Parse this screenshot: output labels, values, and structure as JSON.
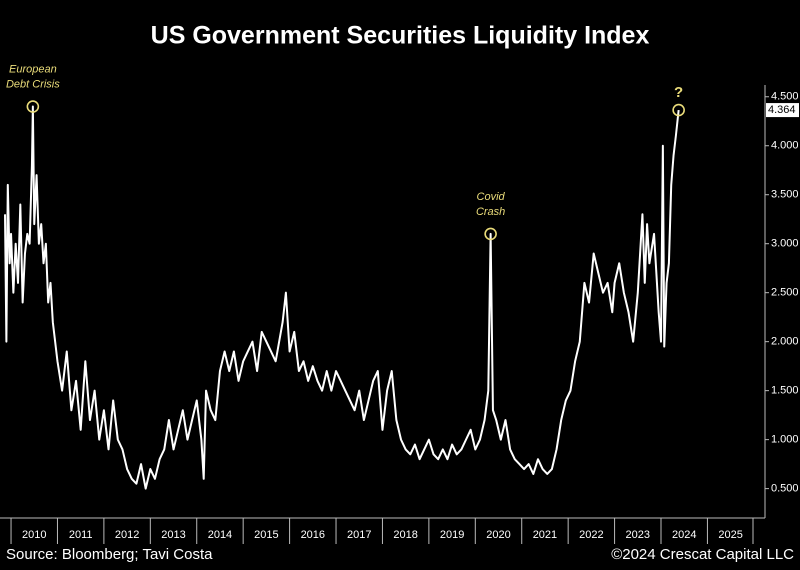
{
  "chart_data": {
    "type": "line",
    "title": "US Government Securities Liquidity Index",
    "source": "Source: Bloomberg; Tavi Costa",
    "copyright": "©2024 Crescat Capital LLC",
    "x": [
      2009.87,
      2009.9,
      2009.93,
      2009.97,
      2010.0,
      2010.05,
      2010.1,
      2010.15,
      2010.2,
      2010.25,
      2010.3,
      2010.35,
      2010.4,
      2010.45,
      2010.47,
      2010.5,
      2010.55,
      2010.6,
      2010.65,
      2010.7,
      2010.75,
      2010.8,
      2010.85,
      2010.9,
      2010.95,
      2011.0,
      2011.1,
      2011.2,
      2011.3,
      2011.4,
      2011.5,
      2011.6,
      2011.7,
      2011.8,
      2011.9,
      2012.0,
      2012.1,
      2012.2,
      2012.3,
      2012.4,
      2012.5,
      2012.6,
      2012.7,
      2012.8,
      2012.9,
      2013.0,
      2013.1,
      2013.2,
      2013.3,
      2013.4,
      2013.5,
      2013.6,
      2013.7,
      2013.8,
      2013.9,
      2014.0,
      2014.1,
      2014.15,
      2014.2,
      2014.3,
      2014.4,
      2014.5,
      2014.6,
      2014.7,
      2014.8,
      2014.9,
      2015.0,
      2015.1,
      2015.2,
      2015.3,
      2015.4,
      2015.5,
      2015.7,
      2015.85,
      2015.92,
      2016.0,
      2016.1,
      2016.2,
      2016.3,
      2016.4,
      2016.5,
      2016.6,
      2016.7,
      2016.8,
      2016.9,
      2017.0,
      2017.1,
      2017.2,
      2017.3,
      2017.4,
      2017.5,
      2017.6,
      2017.7,
      2017.8,
      2017.9,
      2018.0,
      2018.1,
      2018.2,
      2018.3,
      2018.4,
      2018.5,
      2018.6,
      2018.7,
      2018.8,
      2018.9,
      2019.0,
      2019.1,
      2019.2,
      2019.3,
      2019.4,
      2019.5,
      2019.6,
      2019.7,
      2019.8,
      2019.9,
      2020.0,
      2020.1,
      2020.2,
      2020.28,
      2020.33,
      2020.38,
      2020.45,
      2020.55,
      2020.65,
      2020.75,
      2020.85,
      2020.95,
      2021.05,
      2021.15,
      2021.25,
      2021.35,
      2021.45,
      2021.55,
      2021.65,
      2021.75,
      2021.85,
      2021.95,
      2022.05,
      2022.15,
      2022.25,
      2022.35,
      2022.45,
      2022.55,
      2022.65,
      2022.75,
      2022.85,
      2022.95,
      2023.0,
      2023.1,
      2023.2,
      2023.3,
      2023.4,
      2023.5,
      2023.6,
      2023.65,
      2023.7,
      2023.75,
      2023.85,
      2023.95,
      2024.0,
      2024.04,
      2024.07,
      2024.12,
      2024.17,
      2024.22,
      2024.27,
      2024.32,
      2024.38
    ],
    "series": [
      {
        "name": "US Government Securities Liquidity Index",
        "color": "#ffffff",
        "values": [
          3.3,
          2.0,
          3.6,
          2.8,
          3.1,
          2.5,
          3.0,
          2.6,
          3.4,
          2.4,
          2.9,
          3.1,
          3.0,
          3.8,
          4.4,
          3.2,
          3.7,
          3.0,
          3.2,
          2.8,
          3.0,
          2.4,
          2.6,
          2.2,
          2.0,
          1.8,
          1.5,
          1.9,
          1.3,
          1.6,
          1.1,
          1.8,
          1.2,
          1.5,
          1.0,
          1.3,
          0.9,
          1.4,
          1.0,
          0.9,
          0.7,
          0.6,
          0.55,
          0.75,
          0.5,
          0.7,
          0.6,
          0.8,
          0.9,
          1.2,
          0.9,
          1.1,
          1.3,
          1.0,
          1.2,
          1.4,
          1.0,
          0.6,
          1.5,
          1.3,
          1.2,
          1.7,
          1.9,
          1.7,
          1.9,
          1.6,
          1.8,
          1.9,
          2.0,
          1.7,
          2.1,
          2.0,
          1.8,
          2.2,
          2.5,
          1.9,
          2.1,
          1.7,
          1.8,
          1.6,
          1.75,
          1.6,
          1.5,
          1.7,
          1.5,
          1.7,
          1.6,
          1.5,
          1.4,
          1.3,
          1.5,
          1.2,
          1.4,
          1.6,
          1.7,
          1.1,
          1.5,
          1.7,
          1.2,
          1.0,
          0.9,
          0.85,
          0.95,
          0.8,
          0.9,
          1.0,
          0.85,
          0.8,
          0.9,
          0.8,
          0.95,
          0.85,
          0.9,
          1.0,
          1.1,
          0.9,
          1.0,
          1.2,
          1.5,
          3.1,
          1.3,
          1.2,
          1.0,
          1.2,
          0.9,
          0.8,
          0.75,
          0.7,
          0.75,
          0.65,
          0.8,
          0.7,
          0.65,
          0.7,
          0.9,
          1.2,
          1.4,
          1.5,
          1.8,
          2.0,
          2.6,
          2.4,
          2.9,
          2.7,
          2.5,
          2.6,
          2.3,
          2.6,
          2.8,
          2.5,
          2.3,
          2.0,
          2.5,
          3.3,
          2.6,
          3.2,
          2.8,
          3.1,
          2.3,
          2.0,
          4.0,
          1.95,
          2.6,
          2.8,
          3.6,
          3.9,
          4.1,
          4.364
        ]
      }
    ],
    "xlim": [
      2009.87,
      2026.24
    ],
    "xticks": [
      2010,
      2011,
      2012,
      2013,
      2014,
      2015,
      2016,
      2017,
      2018,
      2019,
      2020,
      2021,
      2022,
      2023,
      2024,
      2025
    ],
    "ylim": [
      0.2,
      4.62
    ],
    "yticks": [
      {
        "value": 0.5,
        "label": "0.500"
      },
      {
        "value": 1,
        "label": "1.000"
      },
      {
        "value": 1.5,
        "label": "1.500"
      },
      {
        "value": 2,
        "label": "2.000"
      },
      {
        "value": 2.5,
        "label": "2.500"
      },
      {
        "value": 3,
        "label": "3.000"
      },
      {
        "value": 3.5,
        "label": "3.500"
      },
      {
        "value": 4,
        "label": "4.000"
      },
      {
        "value": 4.5,
        "label": "4.500"
      }
    ],
    "annotations": [
      {
        "lines": [
          "European",
          "Debt Crisis"
        ],
        "x": 2010.47,
        "y": 4.4
      },
      {
        "lines": [
          "Covid",
          "Crash"
        ],
        "x": 2020.33,
        "y": 3.1
      },
      {
        "lines": [
          "?"
        ],
        "x": 2024.38,
        "y": 4.364
      }
    ],
    "annotation_color": "#eadc7a"
  }
}
